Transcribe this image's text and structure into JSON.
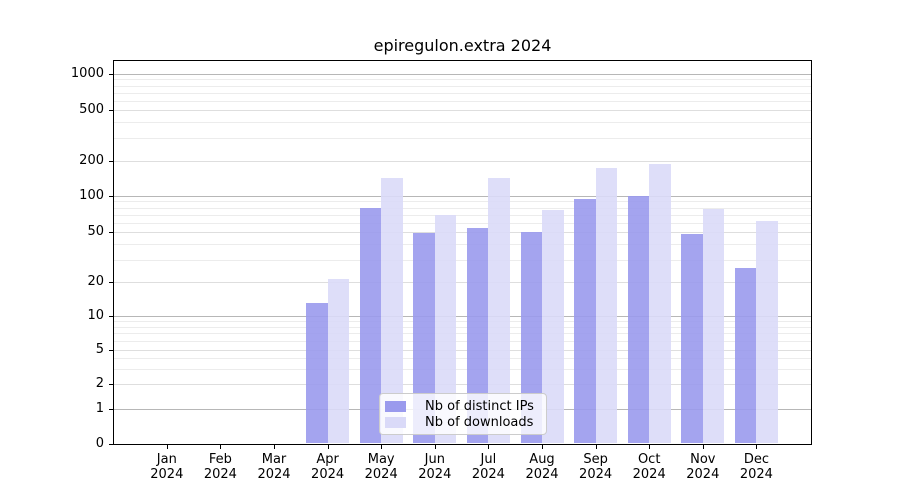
{
  "title": "epiregulon.extra 2024",
  "legend": {
    "items": [
      {
        "label": "Nb of distinct IPs",
        "color": "#9a9aed"
      },
      {
        "label": "Nb of downloads",
        "color": "#dadaf8"
      }
    ]
  },
  "chart_data": {
    "type": "bar",
    "title": "epiregulon.extra 2024",
    "x_months": [
      "Jan",
      "Feb",
      "Mar",
      "Apr",
      "May",
      "Jun",
      "Jul",
      "Aug",
      "Sep",
      "Oct",
      "Nov",
      "Dec"
    ],
    "x_year": "2024",
    "series": [
      {
        "name": "Nb of distinct IPs",
        "key": "distinct-ips",
        "color": "#9a9aed",
        "values": [
          0,
          0,
          0,
          13,
          80,
          49,
          54,
          50,
          94,
          100,
          48,
          26
        ]
      },
      {
        "name": "Nb of downloads",
        "key": "downloads",
        "color": "#dadaf8",
        "values": [
          0,
          0,
          0,
          21,
          144,
          70,
          142,
          77,
          175,
          188,
          78,
          62
        ]
      }
    ],
    "y_ticks": [
      0,
      1,
      2,
      5,
      10,
      20,
      50,
      100,
      200,
      500,
      1000
    ],
    "y_scale": "log-like with compressed linear region below 1",
    "ylim": [
      0,
      1300
    ],
    "grid": true,
    "legend_position": "inside lower-center"
  }
}
